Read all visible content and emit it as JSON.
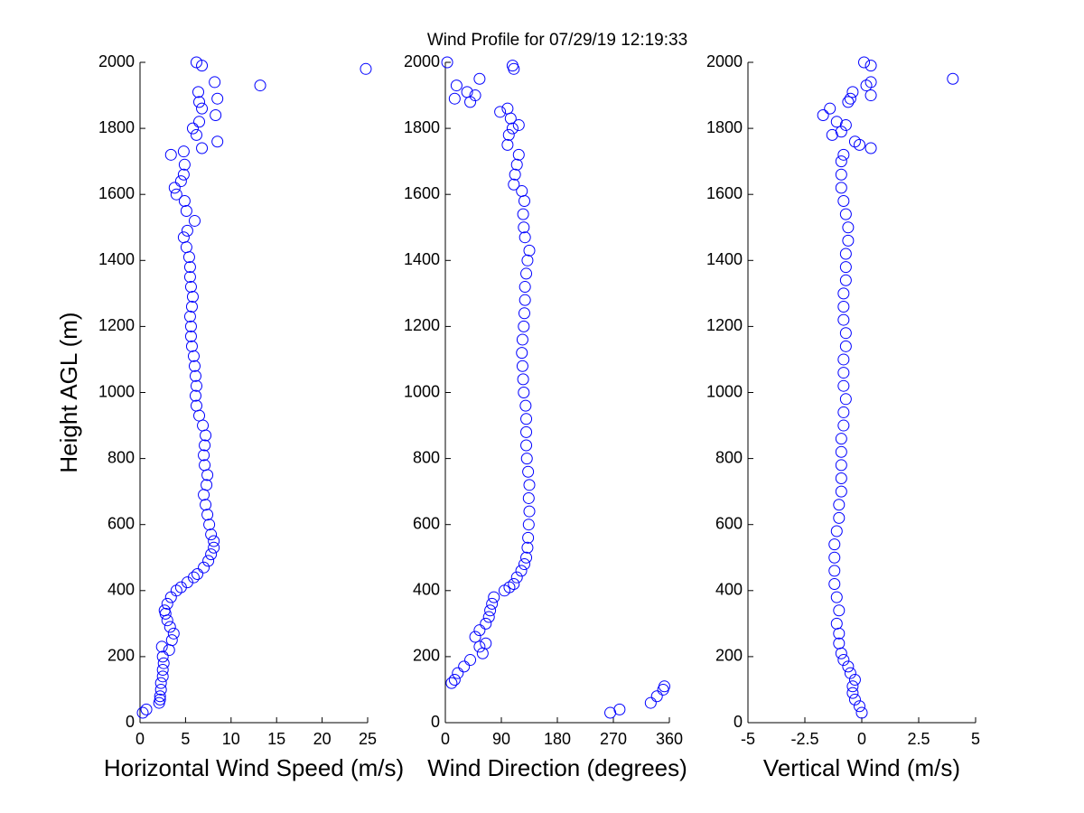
{
  "title": "Wind Profile for  07/29/19 12:19:33",
  "chart_data": [
    {
      "type": "scatter",
      "xlabel": "Horizontal Wind Speed (m/s)",
      "ylabel": "Height AGL (m)",
      "color": "#0000ff",
      "xlim": [
        0,
        25
      ],
      "xticks": [
        0,
        5,
        10,
        15,
        20,
        25
      ],
      "ylim": [
        0,
        2000
      ],
      "yticks": [
        0,
        200,
        400,
        600,
        800,
        1000,
        1200,
        1400,
        1600,
        1800,
        2000
      ],
      "x": [
        0.3,
        0.7,
        2.1,
        2.2,
        2.2,
        2.3,
        2.3,
        2.5,
        2.5,
        2.6,
        2.5,
        2.4,
        3.2,
        3.5,
        3.7,
        3.3,
        3.0,
        2.8,
        2.7,
        3.0,
        3.4,
        4.0,
        4.5,
        5.2,
        5.9,
        6.3,
        7.0,
        7.5,
        7.8,
        8.1,
        8.1,
        7.8,
        7.6,
        7.4,
        7.2,
        7.0,
        7.3,
        7.4,
        7.1,
        7.0,
        7.1,
        7.2,
        6.9,
        6.5,
        6.2,
        6.1,
        6.2,
        6.1,
        6.0,
        5.9,
        5.7,
        5.6,
        5.6,
        5.5,
        5.7,
        5.8,
        5.6,
        5.5,
        5.5,
        5.4,
        5.1,
        4.8,
        5.2,
        6.0,
        5.1,
        4.9,
        4.0,
        3.8,
        4.5,
        4.8,
        4.9,
        3.4,
        4.8,
        6.8,
        8.5,
        6.2,
        5.8,
        6.5,
        8.3,
        6.8,
        6.5,
        8.5,
        6.4,
        13.2,
        8.2,
        24.8,
        6.8,
        6.2
      ],
      "y": [
        30,
        40,
        60,
        70,
        80,
        100,
        120,
        140,
        160,
        180,
        200,
        230,
        220,
        250,
        270,
        290,
        310,
        330,
        340,
        360,
        380,
        400,
        410,
        425,
        440,
        450,
        470,
        490,
        510,
        530,
        550,
        570,
        600,
        630,
        660,
        690,
        720,
        750,
        780,
        810,
        840,
        870,
        900,
        930,
        960,
        990,
        1020,
        1050,
        1080,
        1110,
        1140,
        1170,
        1200,
        1230,
        1260,
        1290,
        1320,
        1350,
        1380,
        1410,
        1440,
        1470,
        1490,
        1520,
        1550,
        1580,
        1600,
        1620,
        1640,
        1660,
        1690,
        1720,
        1730,
        1740,
        1760,
        1780,
        1800,
        1820,
        1840,
        1860,
        1880,
        1890,
        1910,
        1930,
        1940,
        1980,
        1990,
        2000
      ]
    },
    {
      "type": "scatter",
      "xlabel": "Wind Direction (degrees)",
      "color": "#0000ff",
      "xlim": [
        0,
        360
      ],
      "xticks": [
        0,
        90,
        180,
        270,
        360
      ],
      "ylim": [
        0,
        2000
      ],
      "yticks": [
        0,
        200,
        400,
        600,
        800,
        1000,
        1200,
        1400,
        1600,
        1800,
        2000
      ],
      "x": [
        265,
        280,
        330,
        340,
        350,
        352,
        10,
        15,
        20,
        30,
        40,
        60,
        55,
        65,
        48,
        55,
        65,
        70,
        72,
        75,
        78,
        95,
        103,
        110,
        115,
        122,
        127,
        130,
        132,
        133,
        134,
        135,
        134,
        135,
        133,
        131,
        130,
        130,
        130,
        129,
        126,
        125,
        124,
        123,
        124,
        126,
        127,
        128,
        128,
        130,
        132,
        135,
        128,
        126,
        125,
        127,
        123,
        110,
        112,
        115,
        118,
        100,
        102,
        108,
        118,
        105,
        88,
        100,
        40,
        48,
        35,
        18,
        15,
        55,
        110,
        108,
        3
      ],
      "y": [
        30,
        40,
        60,
        80,
        100,
        110,
        120,
        130,
        150,
        170,
        190,
        210,
        230,
        240,
        260,
        280,
        300,
        320,
        340,
        360,
        380,
        400,
        410,
        420,
        440,
        460,
        480,
        500,
        530,
        560,
        600,
        640,
        680,
        720,
        760,
        800,
        840,
        880,
        920,
        960,
        1000,
        1040,
        1080,
        1120,
        1160,
        1200,
        1240,
        1280,
        1320,
        1360,
        1400,
        1430,
        1470,
        1500,
        1540,
        1580,
        1610,
        1630,
        1660,
        1690,
        1720,
        1750,
        1780,
        1800,
        1810,
        1830,
        1850,
        1860,
        1880,
        1900,
        1910,
        1930,
        1890,
        1950,
        1980,
        1990,
        2000
      ]
    },
    {
      "type": "scatter",
      "xlabel": "Vertical Wind (m/s)",
      "color": "#0000ff",
      "xlim": [
        -5,
        5
      ],
      "xticks": [
        -5,
        -2.5,
        0,
        2.5,
        5
      ],
      "ylim": [
        0,
        2000
      ],
      "yticks": [
        0,
        200,
        400,
        600,
        800,
        1000,
        1200,
        1400,
        1600,
        1800,
        2000
      ],
      "x": [
        0,
        -0.1,
        -0.3,
        -0.4,
        -0.4,
        -0.3,
        -0.5,
        -0.6,
        -0.8,
        -0.9,
        -1.0,
        -1.0,
        -1.1,
        -1.0,
        -1.1,
        -1.2,
        -1.2,
        -1.2,
        -1.2,
        -1.1,
        -1.0,
        -1.0,
        -0.9,
        -0.9,
        -0.9,
        -0.9,
        -0.9,
        -0.8,
        -0.8,
        -0.7,
        -0.8,
        -0.8,
        -0.8,
        -0.7,
        -0.7,
        -0.8,
        -0.8,
        -0.8,
        -0.7,
        -0.7,
        -0.7,
        -0.6,
        -0.6,
        -0.7,
        -0.8,
        -0.9,
        -0.9,
        -0.9,
        -0.8,
        0.4,
        -0.1,
        -0.3,
        -1.3,
        -0.9,
        -0.7,
        -1.1,
        -1.7,
        -1.4,
        -0.6,
        -0.5,
        0.4,
        -0.4,
        0.2,
        0.4,
        4.0,
        0.4,
        0.1
      ],
      "y": [
        30,
        50,
        70,
        90,
        110,
        130,
        150,
        170,
        190,
        210,
        240,
        270,
        300,
        340,
        380,
        420,
        460,
        500,
        540,
        580,
        620,
        660,
        700,
        740,
        780,
        820,
        860,
        900,
        940,
        980,
        1020,
        1060,
        1100,
        1140,
        1180,
        1220,
        1260,
        1300,
        1340,
        1380,
        1420,
        1460,
        1500,
        1540,
        1580,
        1620,
        1660,
        1700,
        1720,
        1740,
        1750,
        1760,
        1780,
        1790,
        1810,
        1820,
        1840,
        1860,
        1880,
        1890,
        1900,
        1910,
        1930,
        1940,
        1950,
        1990,
        2000
      ]
    }
  ]
}
